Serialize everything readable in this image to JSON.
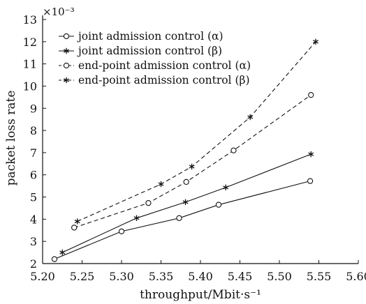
{
  "chart_data": {
    "type": "line",
    "xlabel": "throughput/Mbit·s⁻¹",
    "ylabel": "packet loss rate",
    "y_scale_label": "×10⁻³",
    "xlim": [
      5.2,
      5.6
    ],
    "ylim": [
      2,
      13
    ],
    "x_ticks": [
      "5.20",
      "5.25",
      "5.30",
      "5.35",
      "5.40",
      "5.45",
      "5.50",
      "5.55",
      "5.60"
    ],
    "y_ticks": [
      "2",
      "3",
      "4",
      "5",
      "6",
      "7",
      "8",
      "9",
      "10",
      "11",
      "12",
      "13"
    ],
    "grid": false,
    "legend_position": "top-left",
    "series": [
      {
        "name": "joint admission control (α)",
        "marker": "circle",
        "line_style": "solid",
        "x": [
          5.215,
          5.3,
          5.373,
          5.423,
          5.539
        ],
        "y": [
          2.2,
          3.45,
          4.05,
          4.65,
          5.72
        ]
      },
      {
        "name": "joint admission control (β)",
        "marker": "star",
        "line_style": "solid",
        "x": [
          5.225,
          5.319,
          5.381,
          5.432,
          5.54
        ],
        "y": [
          2.5,
          4.05,
          4.77,
          5.43,
          6.93
        ]
      },
      {
        "name": "end-point admission control (α)",
        "marker": "circle",
        "line_style": "dashed",
        "x": [
          5.24,
          5.334,
          5.382,
          5.442,
          5.54
        ],
        "y": [
          3.62,
          4.73,
          5.68,
          7.1,
          9.6
        ]
      },
      {
        "name": "end-point admission control (β)",
        "marker": "star",
        "line_style": "dashed",
        "x": [
          5.244,
          5.35,
          5.389,
          5.463,
          5.546
        ],
        "y": [
          3.9,
          5.58,
          6.37,
          8.6,
          12.0
        ]
      }
    ]
  }
}
